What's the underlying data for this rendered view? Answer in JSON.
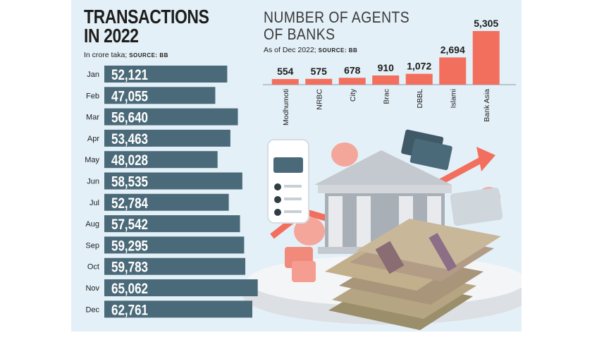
{
  "transactions": {
    "title": "TRANSACTIONS\nIN 2022",
    "subtitle": "In crore taka; ",
    "source": "SOURCE: BB"
  },
  "agents": {
    "title": "NUMBER OF AGENTS\nOF BANKS",
    "subtitle": "As of Dec 2022; ",
    "source": "SOURCE: BB"
  },
  "colors": {
    "panel_bg": "#e4f0f8",
    "transaction_bar": "#4b6a79",
    "agent_bar": "#f26f5e",
    "text": "#1d1d1b"
  },
  "illustration": {
    "description_icons": [
      "phone-icon",
      "bank-building-icon",
      "money-stack-icon",
      "coins-icon",
      "growth-arrow-icon",
      "credit-card-icon"
    ]
  },
  "chart_data": [
    {
      "type": "bar",
      "orientation": "horizontal",
      "title": "TRANSACTIONS IN 2022",
      "subtitle": "In crore taka; SOURCE: BB",
      "categories": [
        "Jan",
        "Feb",
        "Mar",
        "Apr",
        "May",
        "Jun",
        "Jul",
        "Aug",
        "Sep",
        "Oct",
        "Nov",
        "Dec"
      ],
      "values": [
        52121,
        47055,
        56640,
        53463,
        48028,
        58535,
        52784,
        57542,
        59295,
        59783,
        65062,
        62761
      ],
      "labels": [
        "52,121",
        "47,055",
        "56,640",
        "53,463",
        "48,028",
        "58,535",
        "52,784",
        "57,542",
        "59,295",
        "59,783",
        "65,062",
        "62,761"
      ]
    },
    {
      "type": "bar",
      "orientation": "vertical",
      "title": "NUMBER OF AGENTS OF BANKS",
      "subtitle": "As of Dec 2022; SOURCE: BB",
      "categories": [
        "Modhumoti",
        "NRBC",
        "City",
        "Brac",
        "DBBL",
        "Islami",
        "Bank Asia"
      ],
      "values": [
        554,
        575,
        678,
        910,
        1072,
        2694,
        5305
      ],
      "labels": [
        "554",
        "575",
        "678",
        "910",
        "1,072",
        "2,694",
        "5,305"
      ]
    }
  ]
}
